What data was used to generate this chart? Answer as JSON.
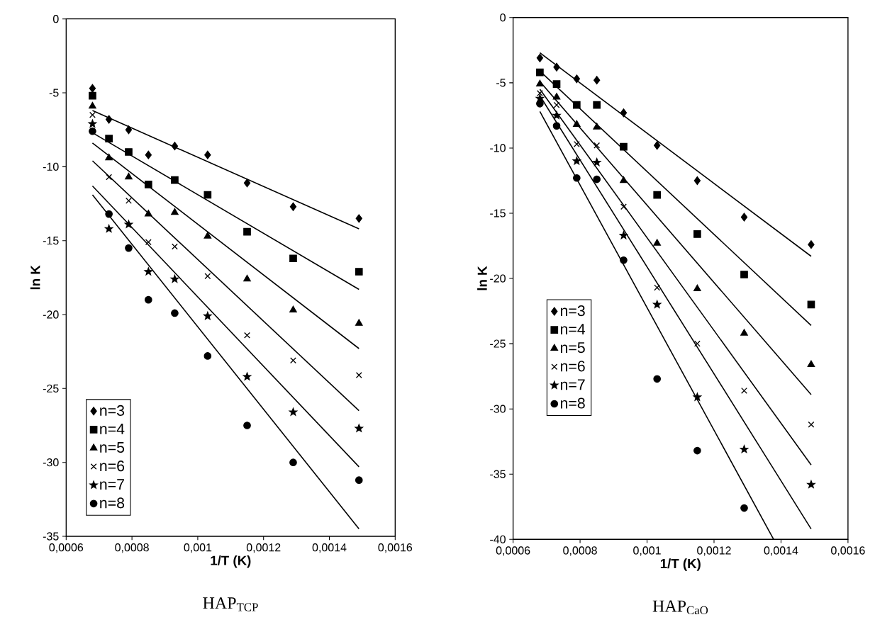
{
  "chart_data": [
    {
      "type": "scatter",
      "title": "HAP$_{TCP}$",
      "xlabel": "1/T (K)",
      "ylabel": "ln K",
      "x": [
        0.00068,
        0.00073,
        0.00079,
        0.00085,
        0.00093,
        0.00103,
        0.00115,
        0.00129,
        0.00149
      ],
      "xlim": [
        0.0006,
        0.0016
      ],
      "ylim": [
        -35,
        0
      ],
      "xticks": [
        {
          "value": 0.0006,
          "label": "0,0006"
        },
        {
          "value": 0.0008,
          "label": "0,0008"
        },
        {
          "value": 0.001,
          "label": "0,001"
        },
        {
          "value": 0.0012,
          "label": "0,0012"
        },
        {
          "value": 0.0014,
          "label": "0,0014"
        },
        {
          "value": 0.0016,
          "label": "0,0016"
        }
      ],
      "yticks": [
        -35,
        -30,
        -25,
        -20,
        -15,
        -10,
        -5,
        0
      ],
      "legend": "bottom left",
      "series": [
        {
          "name": "n=3",
          "marker": "diamond",
          "color": "#000000",
          "values": [
            -4.7,
            -6.8,
            -7.5,
            -9.2,
            -8.6,
            -9.2,
            -11.1,
            -12.7,
            -13.5
          ]
        },
        {
          "name": "n=4",
          "marker": "square",
          "color": "#000000",
          "values": [
            -5.2,
            -8.1,
            -9.0,
            -11.2,
            -10.9,
            -11.9,
            -14.4,
            -16.2,
            -17.1
          ]
        },
        {
          "name": "n=5",
          "marker": "triangle",
          "color": "#000000",
          "values": [
            -5.9,
            -9.4,
            -10.7,
            -13.2,
            -13.1,
            -14.7,
            -17.6,
            -19.7,
            -20.6
          ]
        },
        {
          "name": "n=6",
          "marker": "cross",
          "color": "#000000",
          "values": [
            -6.5,
            -10.7,
            -12.3,
            -15.1,
            -15.4,
            -17.4,
            -21.4,
            -23.1,
            -24.1
          ]
        },
        {
          "name": "n=7",
          "marker": "star",
          "color": "#000000",
          "values": [
            -7.1,
            -14.2,
            -13.9,
            -17.1,
            -17.6,
            -20.1,
            -24.2,
            -26.6,
            -27.7
          ]
        },
        {
          "name": "n=8",
          "marker": "circle",
          "color": "#000000",
          "values": [
            -7.6,
            -13.2,
            -15.5,
            -19.0,
            -19.9,
            -22.8,
            -27.5,
            -30.0,
            -31.2
          ]
        },
        {
          "type": "line",
          "color": "#000000",
          "x": [
            0.00068,
            0.00149
          ],
          "values": [
            -6.2,
            -14.2
          ]
        },
        {
          "type": "line",
          "color": "#000000",
          "x": [
            0.00068,
            0.00149
          ],
          "values": [
            -7.7,
            -18.3
          ]
        },
        {
          "type": "line",
          "color": "#000000",
          "x": [
            0.00068,
            0.00149
          ],
          "values": [
            -8.4,
            -22.3
          ]
        },
        {
          "type": "line",
          "color": "#000000",
          "x": [
            0.00068,
            0.00149
          ],
          "values": [
            -9.6,
            -26.5
          ]
        },
        {
          "type": "line",
          "color": "#000000",
          "x": [
            0.00068,
            0.00149
          ],
          "values": [
            -11.3,
            -30.3
          ]
        },
        {
          "type": "line",
          "color": "#000000",
          "x": [
            0.00068,
            0.00149
          ],
          "values": [
            -11.9,
            -34.5
          ]
        }
      ]
    },
    {
      "type": "scatter",
      "title": "HAP$_{CaO}$",
      "xlabel": "1/T (K)",
      "ylabel": "ln K",
      "x": [
        0.00068,
        0.00073,
        0.00079,
        0.00085,
        0.00093,
        0.00103,
        0.00115,
        0.00129,
        0.00149
      ],
      "xlim": [
        0.0006,
        0.0016
      ],
      "ylim": [
        -40,
        0
      ],
      "xticks": [
        {
          "value": 0.0006,
          "label": "0,0006"
        },
        {
          "value": 0.0008,
          "label": "0,0008"
        },
        {
          "value": 0.001,
          "label": "0,001"
        },
        {
          "value": 0.0012,
          "label": "0,0012"
        },
        {
          "value": 0.0014,
          "label": "0,0014"
        },
        {
          "value": 0.0016,
          "label": "0,0016"
        }
      ],
      "yticks": [
        -40,
        -35,
        -30,
        -25,
        -20,
        -15,
        -10,
        -5,
        0
      ],
      "legend": "left",
      "series": [
        {
          "name": "n=3",
          "marker": "diamond",
          "color": "#000000",
          "values": [
            -3.1,
            -3.8,
            -4.7,
            -4.8,
            -7.3,
            -9.8,
            -12.5,
            -15.3,
            -17.4
          ]
        },
        {
          "name": "n=4",
          "marker": "square",
          "color": "#000000",
          "values": [
            -4.2,
            -5.1,
            -6.7,
            -6.7,
            -9.9,
            -13.6,
            -16.6,
            -19.7,
            -22.0
          ]
        },
        {
          "name": "n=5",
          "marker": "triangle",
          "color": "#000000",
          "values": [
            -5.1,
            -6.1,
            -8.2,
            -8.4,
            -12.5,
            -17.3,
            -20.8,
            -24.2,
            -26.6
          ]
        },
        {
          "name": "n=6",
          "marker": "cross",
          "color": "#000000",
          "values": [
            -5.8,
            -6.7,
            -9.7,
            -9.8,
            -14.5,
            -20.7,
            -25.0,
            -28.6,
            -31.2
          ]
        },
        {
          "name": "n=7",
          "marker": "star",
          "color": "#000000",
          "values": [
            -6.2,
            -7.5,
            -11.0,
            -11.1,
            -16.7,
            -22.0,
            -29.1,
            -33.1,
            -35.8
          ]
        },
        {
          "name": "n=8",
          "marker": "circle",
          "color": "#000000",
          "values": [
            -6.6,
            -8.3,
            -12.3,
            -12.4,
            -18.6,
            -27.7,
            -33.2,
            -37.6,
            null
          ]
        },
        {
          "type": "line",
          "color": "#000000",
          "x": [
            0.00068,
            0.00149
          ],
          "values": [
            -2.7,
            -18.3
          ]
        },
        {
          "type": "line",
          "color": "#000000",
          "x": [
            0.00068,
            0.00149
          ],
          "values": [
            -4.1,
            -23.6
          ]
        },
        {
          "type": "line",
          "color": "#000000",
          "x": [
            0.00068,
            0.00149
          ],
          "values": [
            -4.9,
            -28.9
          ]
        },
        {
          "type": "line",
          "color": "#000000",
          "x": [
            0.00068,
            0.00149
          ],
          "values": [
            -5.5,
            -34.3
          ]
        },
        {
          "type": "line",
          "color": "#000000",
          "x": [
            0.00068,
            0.00149
          ],
          "values": [
            -6.0,
            -39.2
          ]
        },
        {
          "type": "line",
          "color": "#000000",
          "x": [
            0.00068,
            0.001378
          ],
          "values": [
            -7.2,
            -40
          ]
        }
      ]
    }
  ]
}
